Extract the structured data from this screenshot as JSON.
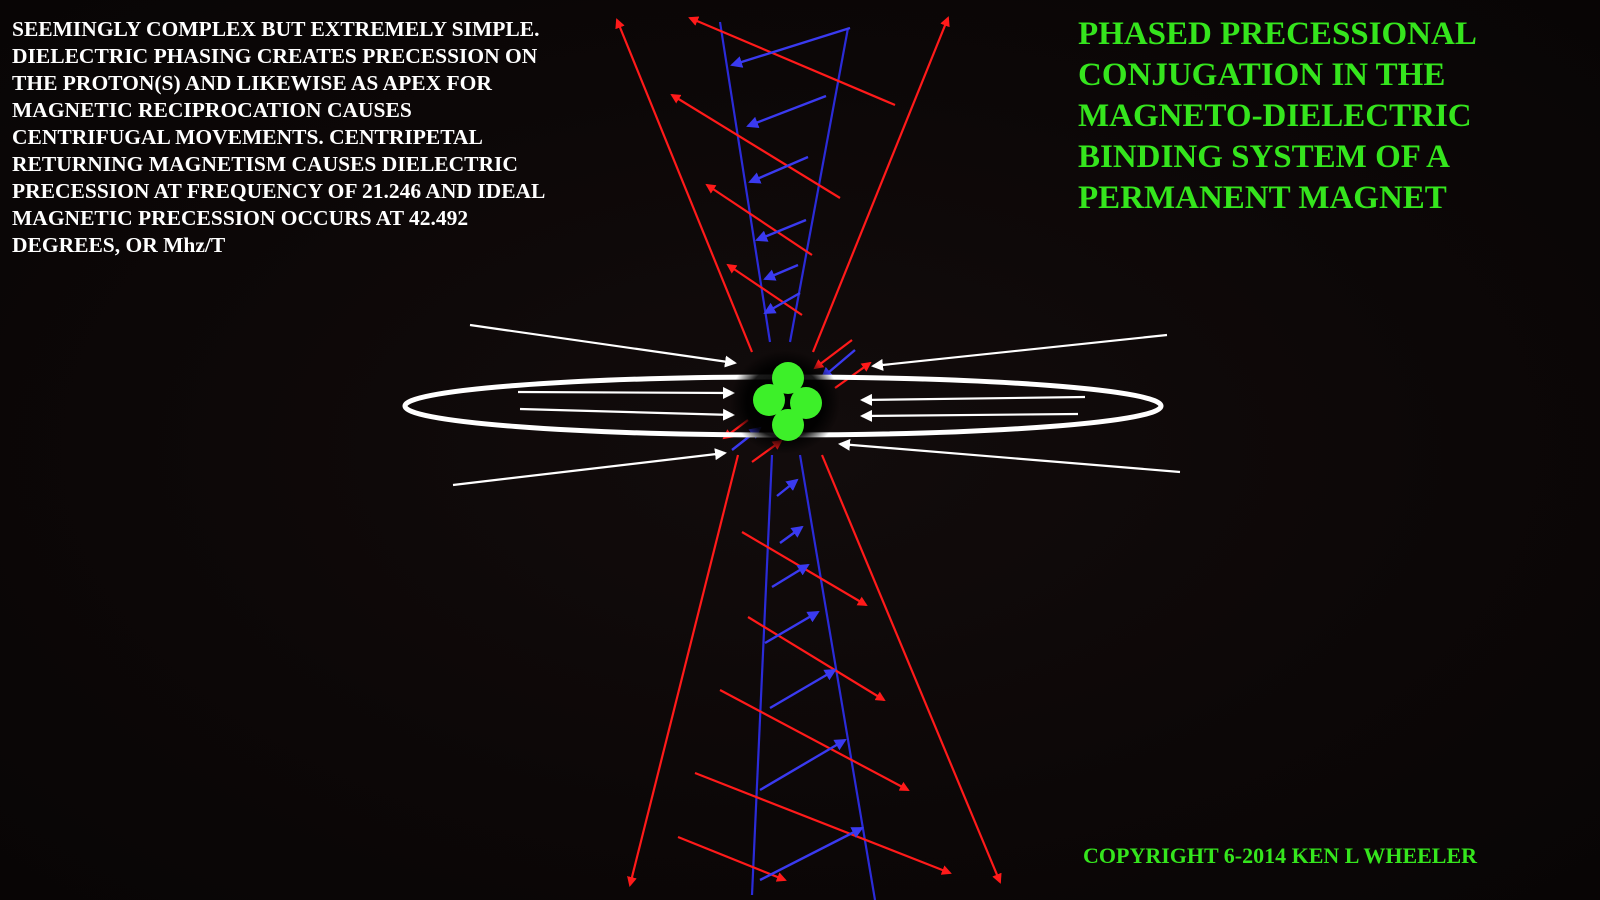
{
  "description_text": "SEEMINGLY COMPLEX BUT EXTREMELY SIMPLE.\nDIELECTRIC PHASING CREATES PRECESSION ON\nTHE PROTON(S) AND LIKEWISE AS APEX FOR\nMAGNETIC RECIPROCATION CAUSES\nCENTRIFUGAL MOVEMENTS. CENTRIPETAL\nRETURNING MAGNETISM CAUSES DIELECTRIC\nPRECESSION AT FREQUENCY OF 21.246 AND IDEAL\nMAGNETIC PRECESSION OCCURS AT 42.492\nDEGREES, OR Mhz/T",
  "title": "PHASED PRECESSIONAL\nCONJUGATION IN THE\nMAGNETO-DIELECTRIC\nBINDING SYSTEM OF A\nPERMANENT MAGNET",
  "copyright": "COPYRIGHT 6-2014 KEN L WHEELER",
  "colors": {
    "background": "#0b0707",
    "text_white": "#ffffff",
    "accent_green": "#35e51d",
    "magnetic_red": "#ff1a1a",
    "dielectric_blue": "#2f2fe0",
    "field_white": "#ffffff",
    "proton_green": "#3df029"
  },
  "icons": [
    "proton-cluster",
    "red-arrow",
    "blue-arrow",
    "white-arrow",
    "white-ellipse-ring"
  ]
}
